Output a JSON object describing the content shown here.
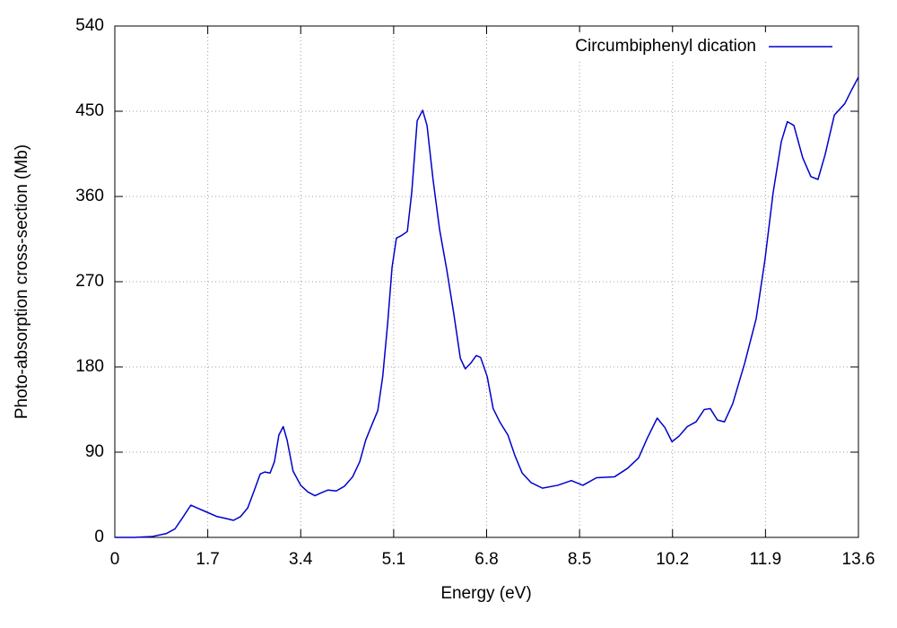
{
  "chart_data": {
    "type": "line",
    "xlabel": "Energy (eV)",
    "ylabel": "Photo-absorption cross-section (Mb)",
    "xlim": [
      0,
      13.6
    ],
    "xticks": [
      0,
      1.7,
      3.4,
      5.1,
      6.8,
      8.5,
      10.2,
      11.9,
      13.6
    ],
    "ylim": [
      0,
      540
    ],
    "yticks": [
      0,
      90,
      180,
      270,
      360,
      450,
      540
    ],
    "grid": true,
    "legend": "upper right",
    "x": [
      0,
      0.36,
      0.69,
      0.94,
      1.1,
      1.23,
      1.39,
      1.51,
      1.67,
      1.87,
      2.03,
      2.17,
      2.3,
      2.43,
      2.54,
      2.66,
      2.74,
      2.84,
      2.92,
      3.0,
      3.08,
      3.15,
      3.26,
      3.4,
      3.53,
      3.66,
      3.77,
      3.9,
      4.05,
      4.2,
      4.35,
      4.48,
      4.59,
      4.71,
      4.81,
      4.9,
      4.99,
      5.07,
      5.15,
      5.25,
      5.35,
      5.43,
      5.53,
      5.63,
      5.71,
      5.82,
      5.94,
      6.07,
      6.2,
      6.32,
      6.41,
      6.51,
      6.61,
      6.69,
      6.81,
      6.92,
      7.04,
      7.19,
      7.32,
      7.45,
      7.61,
      7.82,
      8.1,
      8.35,
      8.56,
      8.81,
      9.14,
      9.38,
      9.58,
      9.74,
      9.92,
      10.06,
      10.19,
      10.32,
      10.47,
      10.63,
      10.78,
      10.89,
      11.02,
      11.15,
      11.3,
      11.52,
      11.73,
      11.89,
      12.04,
      12.19,
      12.3,
      12.42,
      12.58,
      12.73,
      12.86,
      12.99,
      13.16,
      13.35,
      13.48,
      13.6
    ],
    "series": [
      {
        "name": "Circumbiphenyl dication",
        "color": "#0000cc",
        "values": [
          0,
          0,
          1,
          4,
          9,
          20,
          34,
          31,
          27,
          22,
          20,
          18,
          22,
          31,
          48,
          67,
          69,
          68,
          80,
          108,
          117,
          103,
          70,
          55,
          48,
          44,
          47,
          50,
          49,
          54,
          64,
          80,
          103,
          120,
          134,
          170,
          226,
          285,
          316,
          319,
          323,
          364,
          440,
          451,
          435,
          378,
          325,
          283,
          236,
          189,
          178,
          184,
          192,
          190,
          170,
          136,
          122,
          108,
          86,
          68,
          58,
          52,
          55,
          60,
          55,
          63,
          64,
          73,
          84,
          105,
          126,
          116,
          101,
          107,
          117,
          122,
          135,
          136,
          124,
          122,
          141,
          184,
          231,
          293,
          364,
          418,
          439,
          435,
          401,
          381,
          378,
          404,
          446,
          458,
          473,
          486
        ]
      }
    ]
  }
}
